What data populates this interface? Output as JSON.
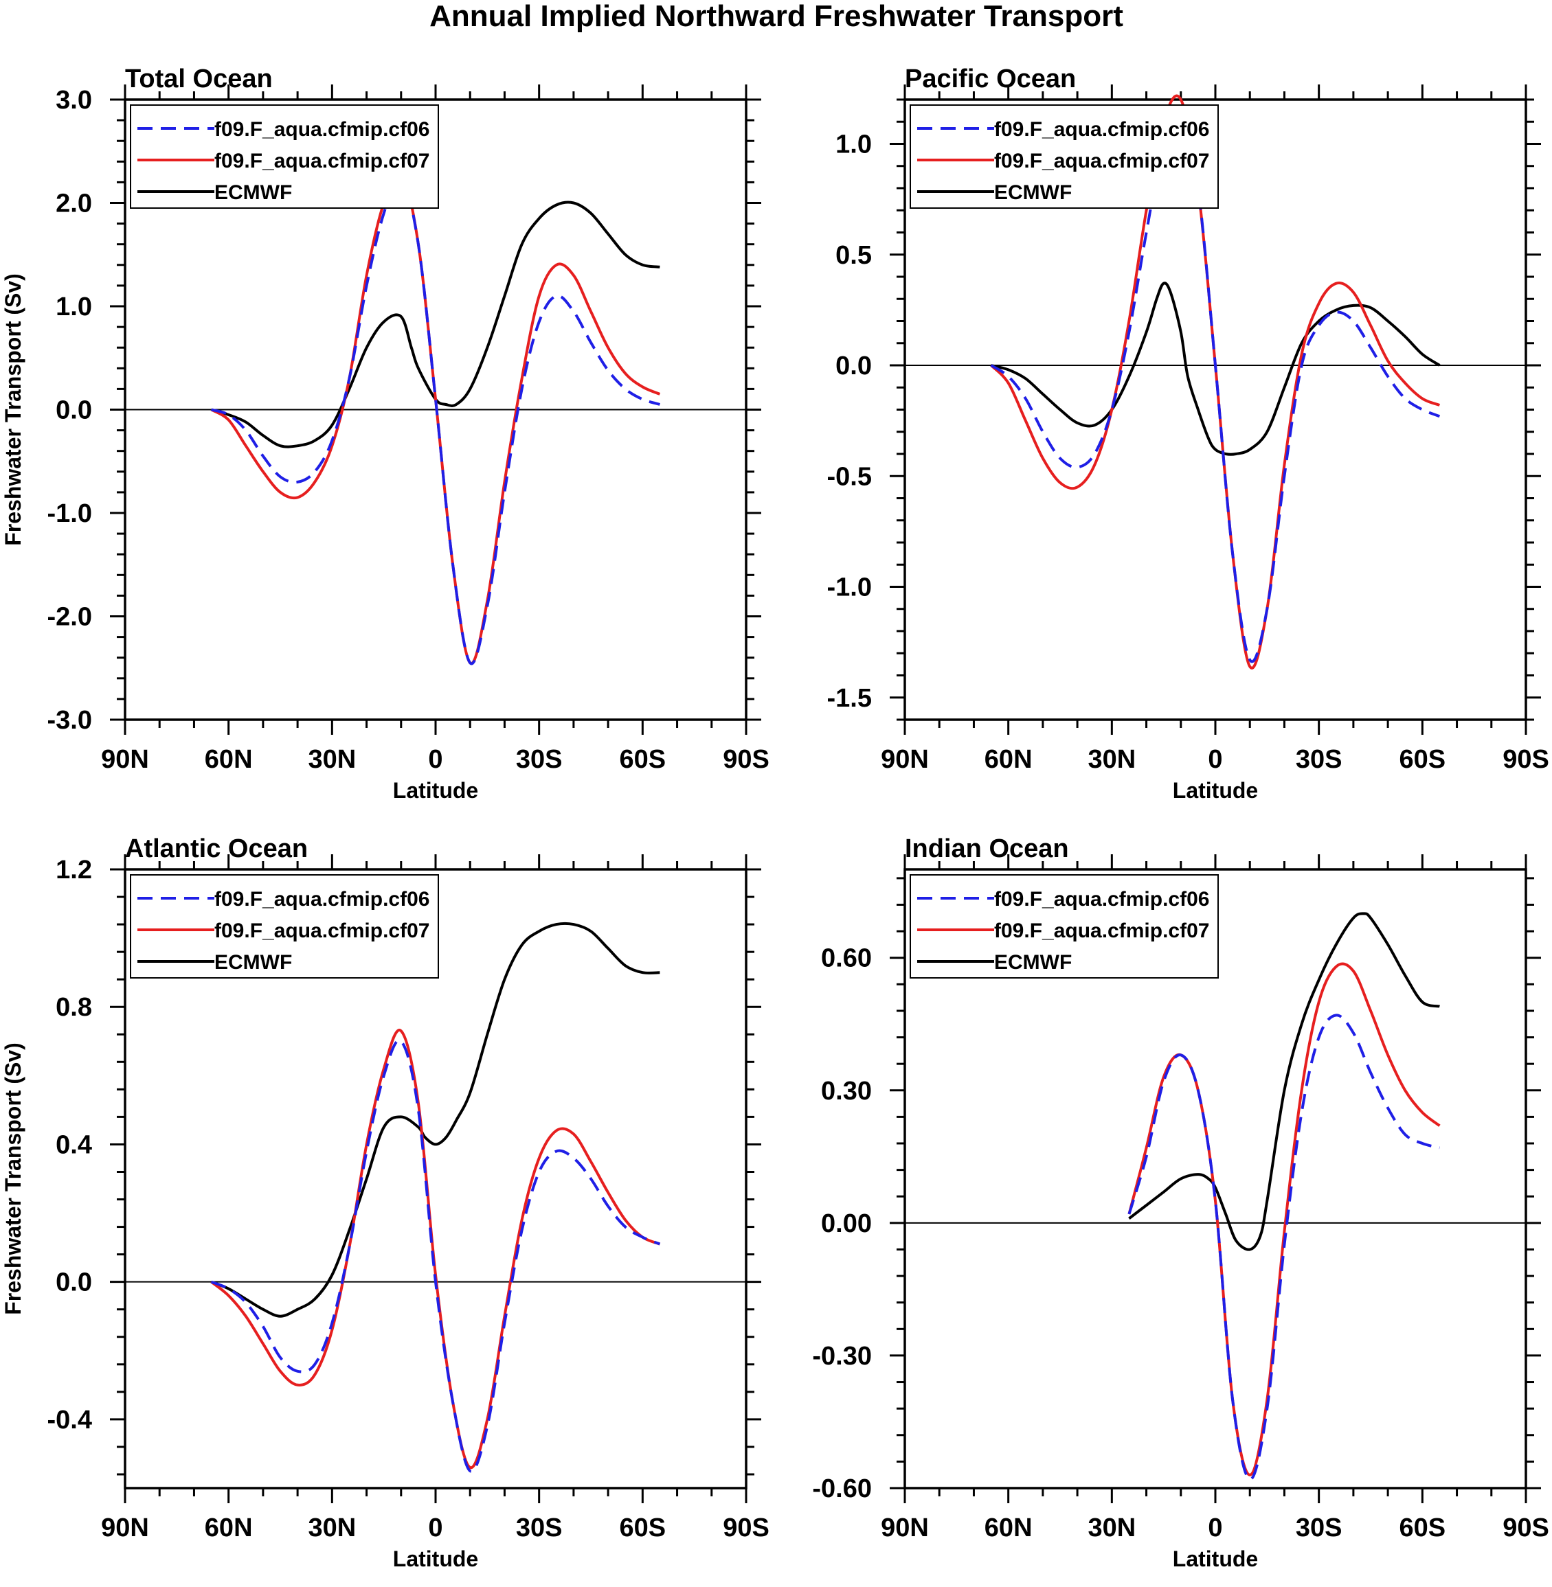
{
  "figure_title": "Annual Implied Northward Freshwater Transport",
  "colors": {
    "cf06": "#1f1fe6",
    "cf07": "#e61f1f",
    "ECMWF": "#000000"
  },
  "chart_data": [
    {
      "type": "line",
      "title": "Total Ocean",
      "xlabel": "Latitude",
      "ylabel": "Freshwater Transport (Sv)",
      "xlim": [
        90,
        -90
      ],
      "x_ticks": [
        90,
        60,
        30,
        0,
        -30,
        -60,
        -90
      ],
      "x_tick_labels": [
        "90N",
        "60N",
        "30N",
        "0",
        "30S",
        "60S",
        "90S"
      ],
      "ylim": [
        -3.0,
        3.0
      ],
      "y_ticks": [
        -3.0,
        -2.0,
        -1.0,
        0.0,
        1.0,
        2.0,
        3.0
      ],
      "y_tick_labels": [
        "-3.0",
        "-2.0",
        "-1.0",
        "0.0",
        "1.0",
        "2.0",
        "3.0"
      ],
      "zero_line": true,
      "legend": "top-left",
      "series": [
        {
          "name": "f09.F_aqua.cfmip.cf06",
          "style": "dashed",
          "x": [
            65,
            60,
            55,
            50,
            45,
            40,
            35,
            30,
            25,
            20,
            15,
            10,
            5,
            0,
            -5,
            -10,
            -15,
            -20,
            -25,
            -30,
            -35,
            -40,
            -45,
            -50,
            -55,
            -60,
            -65
          ],
          "y": [
            0,
            -0.05,
            -0.2,
            -0.45,
            -0.65,
            -0.7,
            -0.6,
            -0.3,
            0.3,
            1.2,
            1.9,
            2.25,
            1.6,
            0.1,
            -1.5,
            -2.45,
            -1.9,
            -0.8,
            0.2,
            0.85,
            1.1,
            0.95,
            0.65,
            0.38,
            0.2,
            0.1,
            0.05
          ]
        },
        {
          "name": "f09.F_aqua.cfmip.cf07",
          "style": "solid",
          "x": [
            65,
            60,
            55,
            50,
            45,
            40,
            35,
            30,
            25,
            20,
            15,
            10,
            5,
            0,
            -5,
            -10,
            -15,
            -20,
            -25,
            -30,
            -35,
            -40,
            -45,
            -50,
            -55,
            -60,
            -65
          ],
          "y": [
            0,
            -0.1,
            -0.35,
            -0.6,
            -0.8,
            -0.85,
            -0.7,
            -0.35,
            0.3,
            1.3,
            2.0,
            2.3,
            1.6,
            0.1,
            -1.5,
            -2.45,
            -1.85,
            -0.7,
            0.3,
            1.1,
            1.4,
            1.3,
            0.95,
            0.6,
            0.35,
            0.22,
            0.15
          ]
        },
        {
          "name": "ECMWF",
          "style": "solid",
          "x": [
            65,
            60,
            55,
            50,
            45,
            40,
            35,
            30,
            25,
            20,
            15,
            10,
            7,
            5,
            0,
            -3,
            -6,
            -10,
            -15,
            -20,
            -25,
            -30,
            -35,
            -40,
            -45,
            -50,
            -55,
            -60,
            -65
          ],
          "y": [
            0,
            -0.05,
            -0.12,
            -0.25,
            -0.35,
            -0.35,
            -0.3,
            -0.15,
            0.2,
            0.6,
            0.85,
            0.9,
            0.6,
            0.4,
            0.1,
            0.05,
            0.05,
            0.2,
            0.6,
            1.1,
            1.6,
            1.85,
            1.98,
            2.0,
            1.9,
            1.7,
            1.5,
            1.4,
            1.38
          ]
        }
      ]
    },
    {
      "type": "line",
      "title": "Pacific Ocean",
      "xlabel": "Latitude",
      "ylabel": "",
      "xlim": [
        90,
        -90
      ],
      "x_ticks": [
        90,
        60,
        30,
        0,
        -30,
        -60,
        -90
      ],
      "x_tick_labels": [
        "90N",
        "60N",
        "30N",
        "0",
        "30S",
        "60S",
        "90S"
      ],
      "ylim": [
        -1.6,
        1.2
      ],
      "y_ticks": [
        -1.5,
        -1.0,
        -0.5,
        0.0,
        0.5,
        1.0
      ],
      "y_tick_labels": [
        "-1.5",
        "-1.0",
        "-0.5",
        "0.0",
        "0.5",
        "1.0"
      ],
      "zero_line": true,
      "legend": "top-left",
      "series": [
        {
          "name": "f09.F_aqua.cfmip.cf06",
          "style": "dashed",
          "x": [
            65,
            60,
            55,
            50,
            45,
            40,
            35,
            30,
            25,
            20,
            15,
            10,
            5,
            0,
            -5,
            -10,
            -15,
            -20,
            -25,
            -30,
            -35,
            -40,
            -45,
            -50,
            -55,
            -60,
            -65
          ],
          "y": [
            0,
            -0.05,
            -0.15,
            -0.3,
            -0.42,
            -0.46,
            -0.4,
            -0.2,
            0.15,
            0.6,
            1.0,
            1.15,
            0.8,
            0,
            -0.85,
            -1.33,
            -1.1,
            -0.5,
            0,
            0.18,
            0.24,
            0.2,
            0.08,
            -0.05,
            -0.15,
            -0.2,
            -0.23
          ]
        },
        {
          "name": "f09.F_aqua.cfmip.cf07",
          "style": "solid",
          "x": [
            65,
            60,
            55,
            50,
            45,
            40,
            35,
            30,
            25,
            20,
            15,
            10,
            5,
            0,
            -5,
            -10,
            -15,
            -20,
            -25,
            -30,
            -35,
            -40,
            -45,
            -50,
            -55,
            -60,
            -65
          ],
          "y": [
            0,
            -0.08,
            -0.25,
            -0.42,
            -0.53,
            -0.55,
            -0.45,
            -0.2,
            0.2,
            0.7,
            1.1,
            1.2,
            0.8,
            0,
            -0.85,
            -1.36,
            -1.1,
            -0.45,
            0.05,
            0.28,
            0.37,
            0.33,
            0.18,
            0.02,
            -0.08,
            -0.15,
            -0.18
          ]
        },
        {
          "name": "ECMWF",
          "style": "solid",
          "x": [
            65,
            60,
            55,
            50,
            45,
            40,
            35,
            30,
            25,
            20,
            17,
            15,
            13,
            10,
            8,
            5,
            2,
            0,
            -3,
            -6,
            -10,
            -15,
            -20,
            -25,
            -30,
            -35,
            -40,
            -45,
            -50,
            -55,
            -60,
            -65
          ],
          "y": [
            0,
            -0.02,
            -0.06,
            -0.13,
            -0.2,
            -0.26,
            -0.27,
            -0.2,
            -0.05,
            0.15,
            0.3,
            0.37,
            0.33,
            0.15,
            -0.05,
            -0.2,
            -0.33,
            -0.38,
            -0.4,
            -0.4,
            -0.38,
            -0.3,
            -0.1,
            0.1,
            0.2,
            0.25,
            0.27,
            0.26,
            0.2,
            0.13,
            0.05,
            0.0
          ]
        }
      ]
    },
    {
      "type": "line",
      "title": "Atlantic Ocean",
      "xlabel": "Latitude",
      "ylabel": "Freshwater Transport (Sv)",
      "xlim": [
        90,
        -90
      ],
      "x_ticks": [
        90,
        60,
        30,
        0,
        -30,
        -60,
        -90
      ],
      "x_tick_labels": [
        "90N",
        "60N",
        "30N",
        "0",
        "30S",
        "60S",
        "90S"
      ],
      "ylim": [
        -0.6,
        1.2
      ],
      "y_ticks": [
        -0.4,
        0.0,
        0.4,
        0.8,
        1.2
      ],
      "y_tick_labels": [
        "-0.4",
        "0.0",
        "0.4",
        "0.8",
        "1.2"
      ],
      "zero_line": true,
      "legend": "top-left",
      "series": [
        {
          "name": "f09.F_aqua.cfmip.cf06",
          "style": "dashed",
          "x": [
            65,
            60,
            55,
            50,
            45,
            40,
            35,
            30,
            25,
            20,
            15,
            10,
            5,
            0,
            -5,
            -10,
            -15,
            -20,
            -25,
            -30,
            -35,
            -40,
            -45,
            -50,
            -55,
            -60,
            -65
          ],
          "y": [
            0,
            -0.02,
            -0.06,
            -0.13,
            -0.22,
            -0.26,
            -0.24,
            -0.12,
            0.1,
            0.38,
            0.6,
            0.7,
            0.5,
            0,
            -0.35,
            -0.55,
            -0.42,
            -0.12,
            0.15,
            0.32,
            0.38,
            0.36,
            0.3,
            0.22,
            0.16,
            0.13,
            0.11
          ]
        },
        {
          "name": "f09.F_aqua.cfmip.cf07",
          "style": "solid",
          "x": [
            65,
            60,
            55,
            50,
            45,
            40,
            35,
            30,
            25,
            20,
            15,
            10,
            5,
            0,
            -5,
            -10,
            -15,
            -20,
            -25,
            -30,
            -35,
            -40,
            -45,
            -50,
            -55,
            -60,
            -65
          ],
          "y": [
            0,
            -0.04,
            -0.1,
            -0.18,
            -0.26,
            -0.3,
            -0.27,
            -0.14,
            0.1,
            0.4,
            0.62,
            0.73,
            0.52,
            0.02,
            -0.35,
            -0.54,
            -0.4,
            -0.1,
            0.18,
            0.36,
            0.44,
            0.43,
            0.35,
            0.26,
            0.18,
            0.13,
            0.11
          ]
        },
        {
          "name": "ECMWF",
          "style": "solid",
          "x": [
            65,
            60,
            55,
            50,
            45,
            40,
            35,
            30,
            25,
            20,
            15,
            10,
            5,
            3,
            0,
            -3,
            -6,
            -10,
            -15,
            -20,
            -25,
            -30,
            -35,
            -40,
            -45,
            -50,
            -55,
            -60,
            -65
          ],
          "y": [
            0,
            -0.02,
            -0.05,
            -0.08,
            -0.1,
            -0.08,
            -0.05,
            0.02,
            0.15,
            0.3,
            0.45,
            0.48,
            0.45,
            0.42,
            0.4,
            0.42,
            0.47,
            0.55,
            0.72,
            0.88,
            0.98,
            1.02,
            1.04,
            1.04,
            1.02,
            0.97,
            0.92,
            0.9,
            0.9
          ]
        }
      ]
    },
    {
      "type": "line",
      "title": "Indian Ocean",
      "xlabel": "Latitude",
      "ylabel": "",
      "xlim": [
        90,
        -90
      ],
      "x_ticks": [
        90,
        60,
        30,
        0,
        -30,
        -60,
        -90
      ],
      "x_tick_labels": [
        "90N",
        "60N",
        "30N",
        "0",
        "30S",
        "60S",
        "90S"
      ],
      "ylim": [
        -0.6,
        0.8
      ],
      "y_ticks": [
        -0.6,
        -0.3,
        0.0,
        0.3,
        0.6
      ],
      "y_tick_labels": [
        "-0.60",
        "-0.30",
        "0.00",
        "0.30",
        "0.60"
      ],
      "zero_line": true,
      "legend": "top-left",
      "series": [
        {
          "name": "f09.F_aqua.cfmip.cf06",
          "style": "dashed",
          "x": [
            25,
            20,
            15,
            10,
            5,
            0,
            -5,
            -10,
            -15,
            -20,
            -25,
            -30,
            -35,
            -40,
            -45,
            -50,
            -55,
            -60,
            -65
          ],
          "y": [
            0.02,
            0.15,
            0.32,
            0.38,
            0.3,
            0.05,
            -0.4,
            -0.58,
            -0.42,
            -0.05,
            0.25,
            0.42,
            0.47,
            0.43,
            0.34,
            0.26,
            0.2,
            0.18,
            0.17
          ]
        },
        {
          "name": "f09.F_aqua.cfmip.cf07",
          "style": "solid",
          "x": [
            25,
            20,
            15,
            10,
            5,
            0,
            -5,
            -10,
            -15,
            -20,
            -25,
            -30,
            -35,
            -40,
            -45,
            -50,
            -55,
            -60,
            -65
          ],
          "y": [
            0.02,
            0.17,
            0.33,
            0.38,
            0.3,
            0.05,
            -0.4,
            -0.57,
            -0.4,
            -0.02,
            0.3,
            0.5,
            0.58,
            0.57,
            0.48,
            0.38,
            0.3,
            0.25,
            0.22
          ]
        },
        {
          "name": "ECMWF",
          "style": "solid",
          "x": [
            25,
            20,
            15,
            10,
            5,
            2,
            0,
            -3,
            -6,
            -10,
            -13,
            -15,
            -20,
            -25,
            -30,
            -35,
            -40,
            -43,
            -45,
            -50,
            -55,
            -60,
            -65
          ],
          "y": [
            0.01,
            0.04,
            0.07,
            0.1,
            0.11,
            0.1,
            0.08,
            0.02,
            -0.04,
            -0.06,
            -0.03,
            0.05,
            0.3,
            0.45,
            0.55,
            0.63,
            0.69,
            0.7,
            0.69,
            0.63,
            0.56,
            0.5,
            0.49
          ]
        }
      ]
    }
  ]
}
